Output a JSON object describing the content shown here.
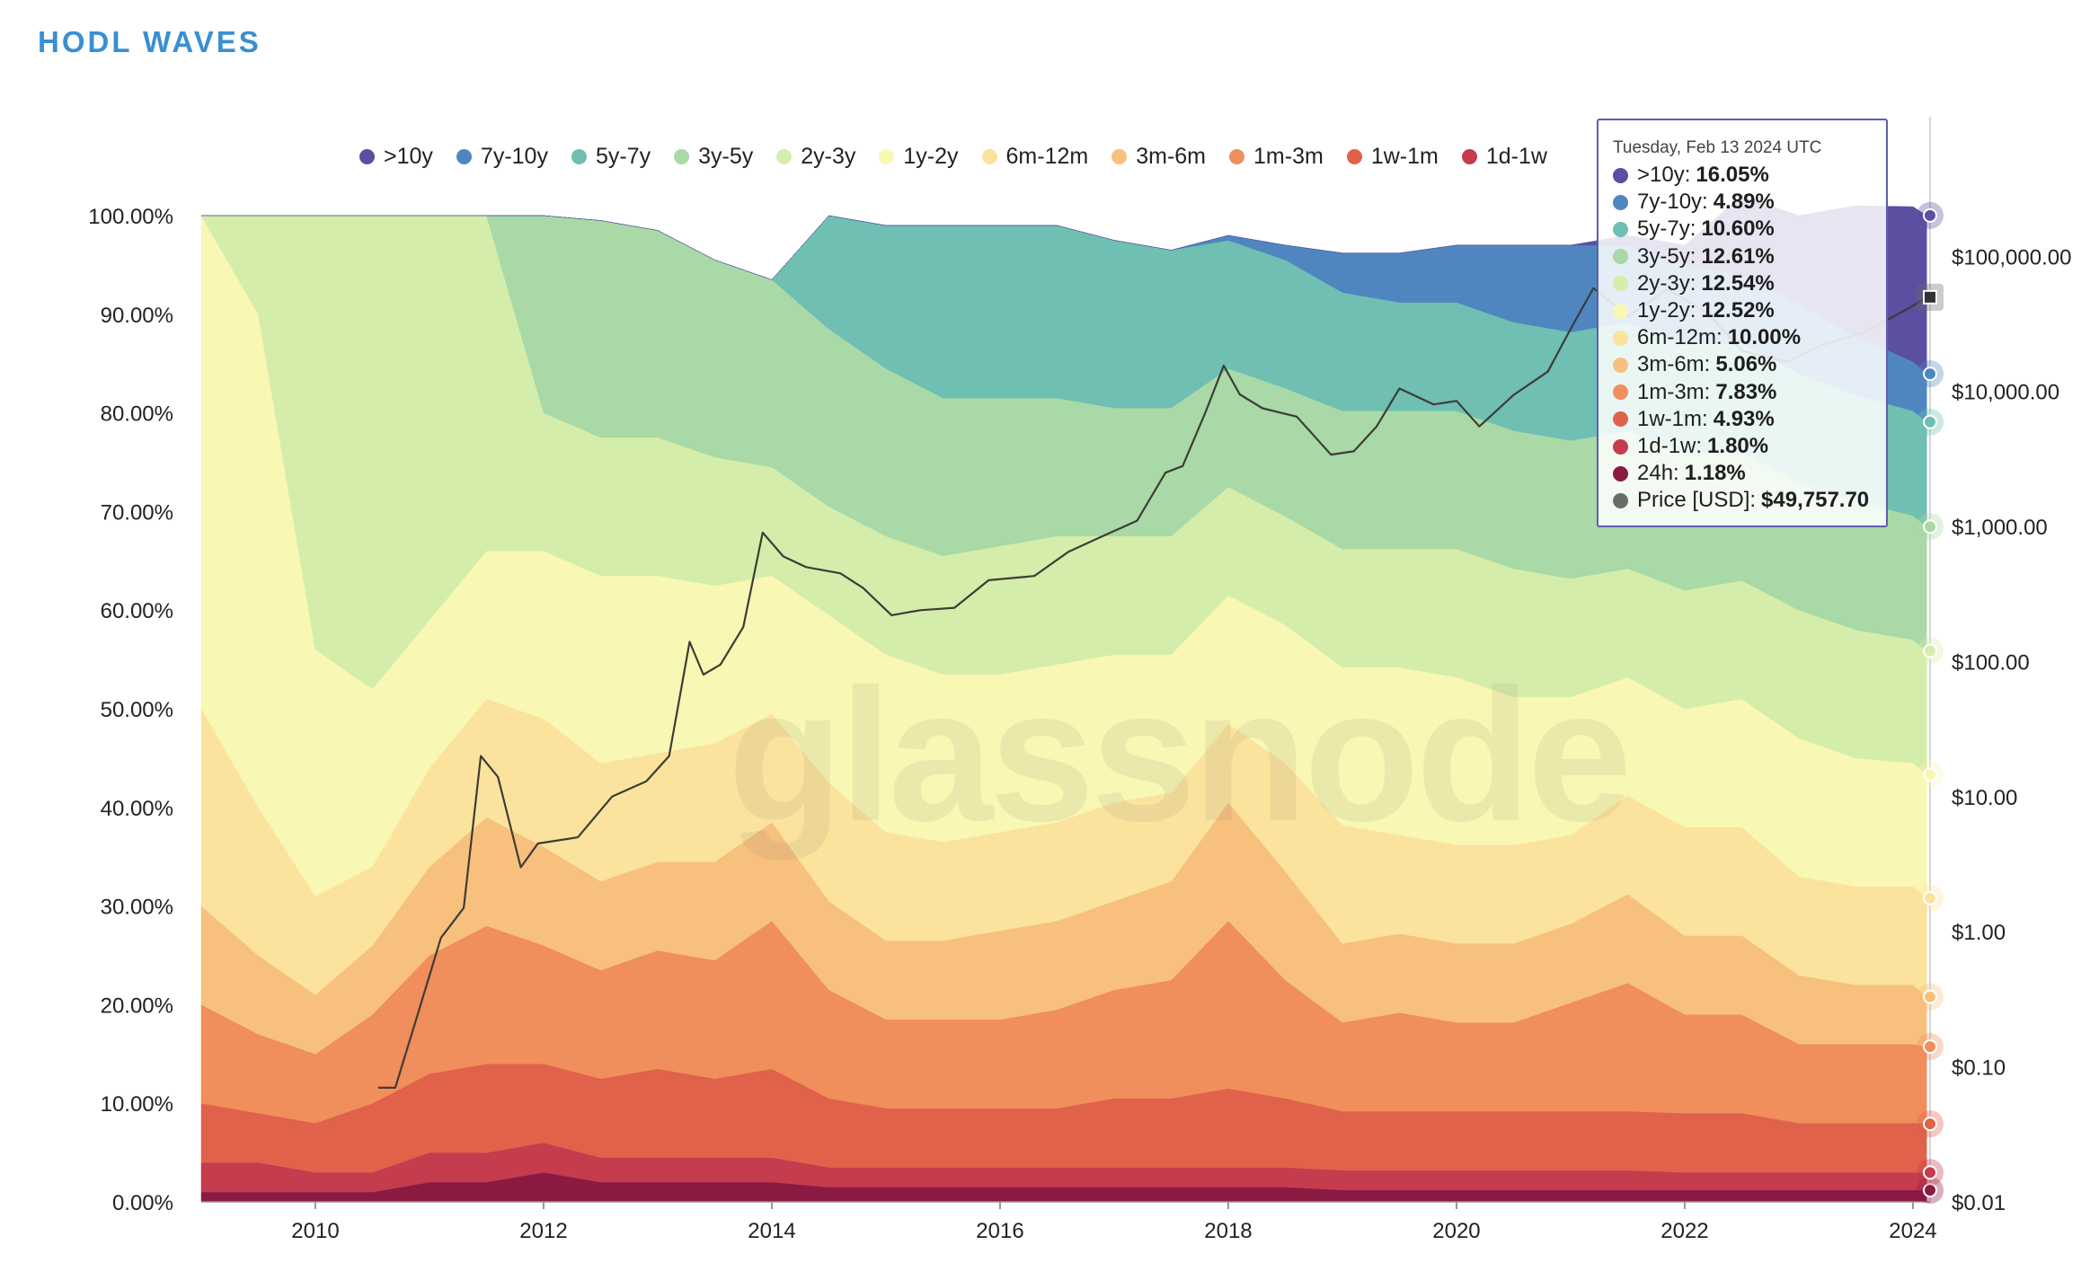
{
  "page": {
    "title": "HODL WAVES",
    "watermark": "glassnode"
  },
  "colors": {
    "title": "#3a8fd1",
    "bands": [
      "#8b1a42",
      "#c43c4e",
      "#e0624a",
      "#f08e5c",
      "#f7c07d",
      "#fbe39d",
      "#f8f7b4",
      "#d5edaa",
      "#a9d9a6",
      "#6fbfb3",
      "#4f86c0",
      "#5a4fa1"
    ],
    "price": "#3d3d35"
  },
  "legend": [
    {
      "label": ">10y",
      "color": "#5a4fa1"
    },
    {
      "label": "7y-10y",
      "color": "#4f86c0"
    },
    {
      "label": "5y-7y",
      "color": "#6fbfb3"
    },
    {
      "label": "3y-5y",
      "color": "#a9d9a6"
    },
    {
      "label": "2y-3y",
      "color": "#d5edaa"
    },
    {
      "label": "1y-2y",
      "color": "#f8f7b4"
    },
    {
      "label": "6m-12m",
      "color": "#fbe39d"
    },
    {
      "label": "3m-6m",
      "color": "#f7c07d"
    },
    {
      "label": "1m-3m",
      "color": "#f08e5c"
    },
    {
      "label": "1w-1m",
      "color": "#e0624a"
    },
    {
      "label": "1d-1w",
      "color": "#c43c4e"
    }
  ],
  "tooltip": {
    "date": "Tuesday, Feb 13 2024 UTC",
    "rows": [
      {
        "label": ">10y:",
        "value": "16.05%",
        "color": "#5a4fa1"
      },
      {
        "label": "7y-10y:",
        "value": "4.89%",
        "color": "#4f86c0"
      },
      {
        "label": "5y-7y:",
        "value": "10.60%",
        "color": "#6fbfb3"
      },
      {
        "label": "3y-5y:",
        "value": "12.61%",
        "color": "#a9d9a6"
      },
      {
        "label": "2y-3y:",
        "value": "12.54%",
        "color": "#d5edaa"
      },
      {
        "label": "1y-2y:",
        "value": "12.52%",
        "color": "#f8f7b4"
      },
      {
        "label": "6m-12m:",
        "value": "10.00%",
        "color": "#fbe39d"
      },
      {
        "label": "3m-6m:",
        "value": "5.06%",
        "color": "#f7c07d"
      },
      {
        "label": "1m-3m:",
        "value": "7.83%",
        "color": "#f08e5c"
      },
      {
        "label": "1w-1m:",
        "value": "4.93%",
        "color": "#e0624a"
      },
      {
        "label": "1d-1w:",
        "value": "1.80%",
        "color": "#c43c4e"
      },
      {
        "label": "24h:",
        "value": "1.18%",
        "color": "#8b1a42"
      },
      {
        "label": "Price [USD]:",
        "value": "$49,757.70",
        "color": "#6b6b6b"
      }
    ]
  },
  "chart_data": {
    "type": "area",
    "stacked": true,
    "xlabel": "",
    "ylabel": "",
    "x_ticks": [
      "2010",
      "2012",
      "2014",
      "2016",
      "2018",
      "2020",
      "2022",
      "2024"
    ],
    "y_ticks": [
      "0.00%",
      "10.00%",
      "20.00%",
      "30.00%",
      "40.00%",
      "50.00%",
      "60.00%",
      "70.00%",
      "80.00%",
      "90.00%",
      "100.00%"
    ],
    "y2_ticks": [
      "$0.01",
      "$0.10",
      "$1.00",
      "$10.00",
      "$100.00",
      "$1,000.00",
      "$10,000.00",
      "$100,000.00"
    ],
    "y2_scale": "log",
    "xlim": [
      2009.0,
      2024.15
    ],
    "ylim": [
      0,
      100
    ],
    "y2lim": [
      0.01,
      200000
    ],
    "x": [
      2009.0,
      2009.5,
      2010.0,
      2010.5,
      2011.0,
      2011.5,
      2012.0,
      2012.5,
      2013.0,
      2013.5,
      2014.0,
      2014.5,
      2015.0,
      2015.5,
      2016.0,
      2016.5,
      2017.0,
      2017.5,
      2018.0,
      2018.5,
      2019.0,
      2019.5,
      2020.0,
      2020.5,
      2021.0,
      2021.5,
      2022.0,
      2022.5,
      2023.0,
      2023.5,
      2024.0,
      2024.12
    ],
    "series": [
      {
        "name": "24h",
        "values": [
          1,
          1,
          1,
          1,
          2,
          2,
          3,
          2,
          2,
          2,
          2,
          1.5,
          1.5,
          1.5,
          1.5,
          1.5,
          1.5,
          1.5,
          1.5,
          1.5,
          1.2,
          1.2,
          1.2,
          1.2,
          1.2,
          1.2,
          1.2,
          1.2,
          1.2,
          1.2,
          1.2,
          1.18
        ]
      },
      {
        "name": "1d-1w",
        "values": [
          3,
          3,
          2,
          2,
          3,
          3,
          3,
          2.5,
          2.5,
          2.5,
          2.5,
          2,
          2,
          2,
          2,
          2,
          2,
          2,
          2,
          2,
          2,
          2,
          2,
          2,
          2,
          2,
          1.8,
          1.8,
          1.8,
          1.8,
          1.8,
          1.8
        ]
      },
      {
        "name": "1w-1m",
        "values": [
          6,
          5,
          5,
          7,
          8,
          9,
          8,
          8,
          9,
          8,
          9,
          7,
          6,
          6,
          6,
          6,
          7,
          7,
          8,
          7,
          6,
          6,
          6,
          6,
          6,
          6,
          6,
          6,
          5,
          5,
          5,
          4.93
        ]
      },
      {
        "name": "1m-3m",
        "values": [
          10,
          8,
          7,
          9,
          12,
          14,
          12,
          11,
          12,
          12,
          15,
          11,
          9,
          9,
          9,
          10,
          11,
          12,
          17,
          12,
          9,
          10,
          9,
          9,
          11,
          13,
          10,
          10,
          8,
          8,
          8,
          7.83
        ]
      },
      {
        "name": "3m-6m",
        "values": [
          10,
          8,
          6,
          7,
          9,
          11,
          10,
          9,
          9,
          10,
          10,
          9,
          8,
          8,
          9,
          9,
          9,
          10,
          12,
          11,
          8,
          8,
          8,
          8,
          8,
          9,
          8,
          8,
          7,
          6,
          6,
          5.06
        ]
      },
      {
        "name": "6m-12m",
        "values": [
          20,
          15,
          10,
          8,
          10,
          12,
          13,
          12,
          11,
          12,
          11,
          12,
          11,
          10,
          10,
          10,
          10,
          9,
          8,
          11,
          12,
          10,
          10,
          10,
          9,
          10,
          11,
          11,
          10,
          10,
          10,
          10.0
        ]
      },
      {
        "name": "1y-2y",
        "values": [
          50,
          50,
          25,
          18,
          15,
          15,
          17,
          19,
          18,
          16,
          14,
          17,
          18,
          17,
          16,
          16,
          15,
          14,
          13,
          14,
          16,
          17,
          17,
          15,
          14,
          12,
          12,
          13,
          14,
          13,
          12.5,
          12.52
        ]
      },
      {
        "name": "2y-3y",
        "values": [
          0,
          10,
          44,
          48,
          41,
          34,
          14,
          14,
          14,
          13,
          11,
          11,
          12,
          12,
          13,
          13,
          12,
          12,
          11,
          11,
          12,
          12,
          13,
          13,
          12,
          11,
          12,
          12,
          13,
          13,
          12.5,
          12.54
        ]
      },
      {
        "name": "3y-5y",
        "values": [
          0,
          0,
          0,
          0,
          0,
          0,
          20,
          22,
          21,
          20,
          19,
          18,
          17,
          16,
          15,
          14,
          13,
          13,
          12,
          13,
          14,
          14,
          14,
          14,
          14,
          14,
          14,
          13,
          13,
          13,
          12.6,
          12.61
        ]
      },
      {
        "name": "5y-7y",
        "values": [
          0,
          0,
          0,
          0,
          0,
          0,
          0,
          0,
          0,
          0,
          0,
          11.5,
          14.5,
          17.5,
          17.5,
          17.5,
          17,
          16,
          13,
          13,
          12,
          11,
          11,
          11,
          11,
          11,
          11,
          11,
          11,
          10.8,
          10.6,
          10.6
        ]
      },
      {
        "name": "7y-10y",
        "values": [
          0,
          0,
          0,
          0,
          0,
          0,
          0,
          0,
          0,
          0,
          0,
          0,
          0,
          0,
          0,
          0,
          0,
          0,
          0.5,
          1.5,
          4,
          5,
          5.8,
          7.8,
          8.8,
          7.8,
          8,
          7,
          7,
          6,
          5,
          4.89
        ]
      },
      {
        "name": ">10y",
        "values": [
          0,
          0,
          0,
          0,
          0,
          0,
          0,
          0,
          0,
          0,
          0,
          0,
          0,
          0,
          0,
          0,
          0,
          0,
          0,
          0,
          0,
          0,
          0,
          0,
          0,
          1,
          2,
          8,
          9,
          13.2,
          15.7,
          16.05
        ]
      }
    ],
    "price": {
      "name": "Price [USD]",
      "x": [
        2010.55,
        2010.7,
        2010.9,
        2011.1,
        2011.3,
        2011.45,
        2011.6,
        2011.8,
        2011.95,
        2012.3,
        2012.6,
        2012.9,
        2013.1,
        2013.28,
        2013.4,
        2013.55,
        2013.75,
        2013.92,
        2014.1,
        2014.3,
        2014.6,
        2014.8,
        2015.05,
        2015.3,
        2015.6,
        2015.9,
        2016.3,
        2016.6,
        2016.9,
        2017.2,
        2017.45,
        2017.6,
        2017.8,
        2017.96,
        2018.1,
        2018.3,
        2018.6,
        2018.9,
        2019.1,
        2019.3,
        2019.5,
        2019.8,
        2020.0,
        2020.2,
        2020.5,
        2020.8,
        2021.0,
        2021.2,
        2021.5,
        2021.85,
        2022.2,
        2022.5,
        2022.9,
        2023.2,
        2023.6,
        2024.0,
        2024.12
      ],
      "values": [
        0.07,
        0.07,
        0.25,
        0.9,
        1.5,
        20,
        14,
        3,
        4.5,
        5,
        10,
        13,
        20,
        140,
        80,
        95,
        180,
        900,
        600,
        500,
        450,
        350,
        220,
        240,
        250,
        400,
        430,
        650,
        850,
        1100,
        2500,
        2800,
        7000,
        15500,
        9500,
        7500,
        6500,
        3400,
        3600,
        5500,
        10500,
        8000,
        8500,
        5500,
        9400,
        14000,
        29000,
        58000,
        36000,
        57000,
        38000,
        20000,
        16500,
        22000,
        28000,
        43000,
        49757.7
      ]
    }
  }
}
